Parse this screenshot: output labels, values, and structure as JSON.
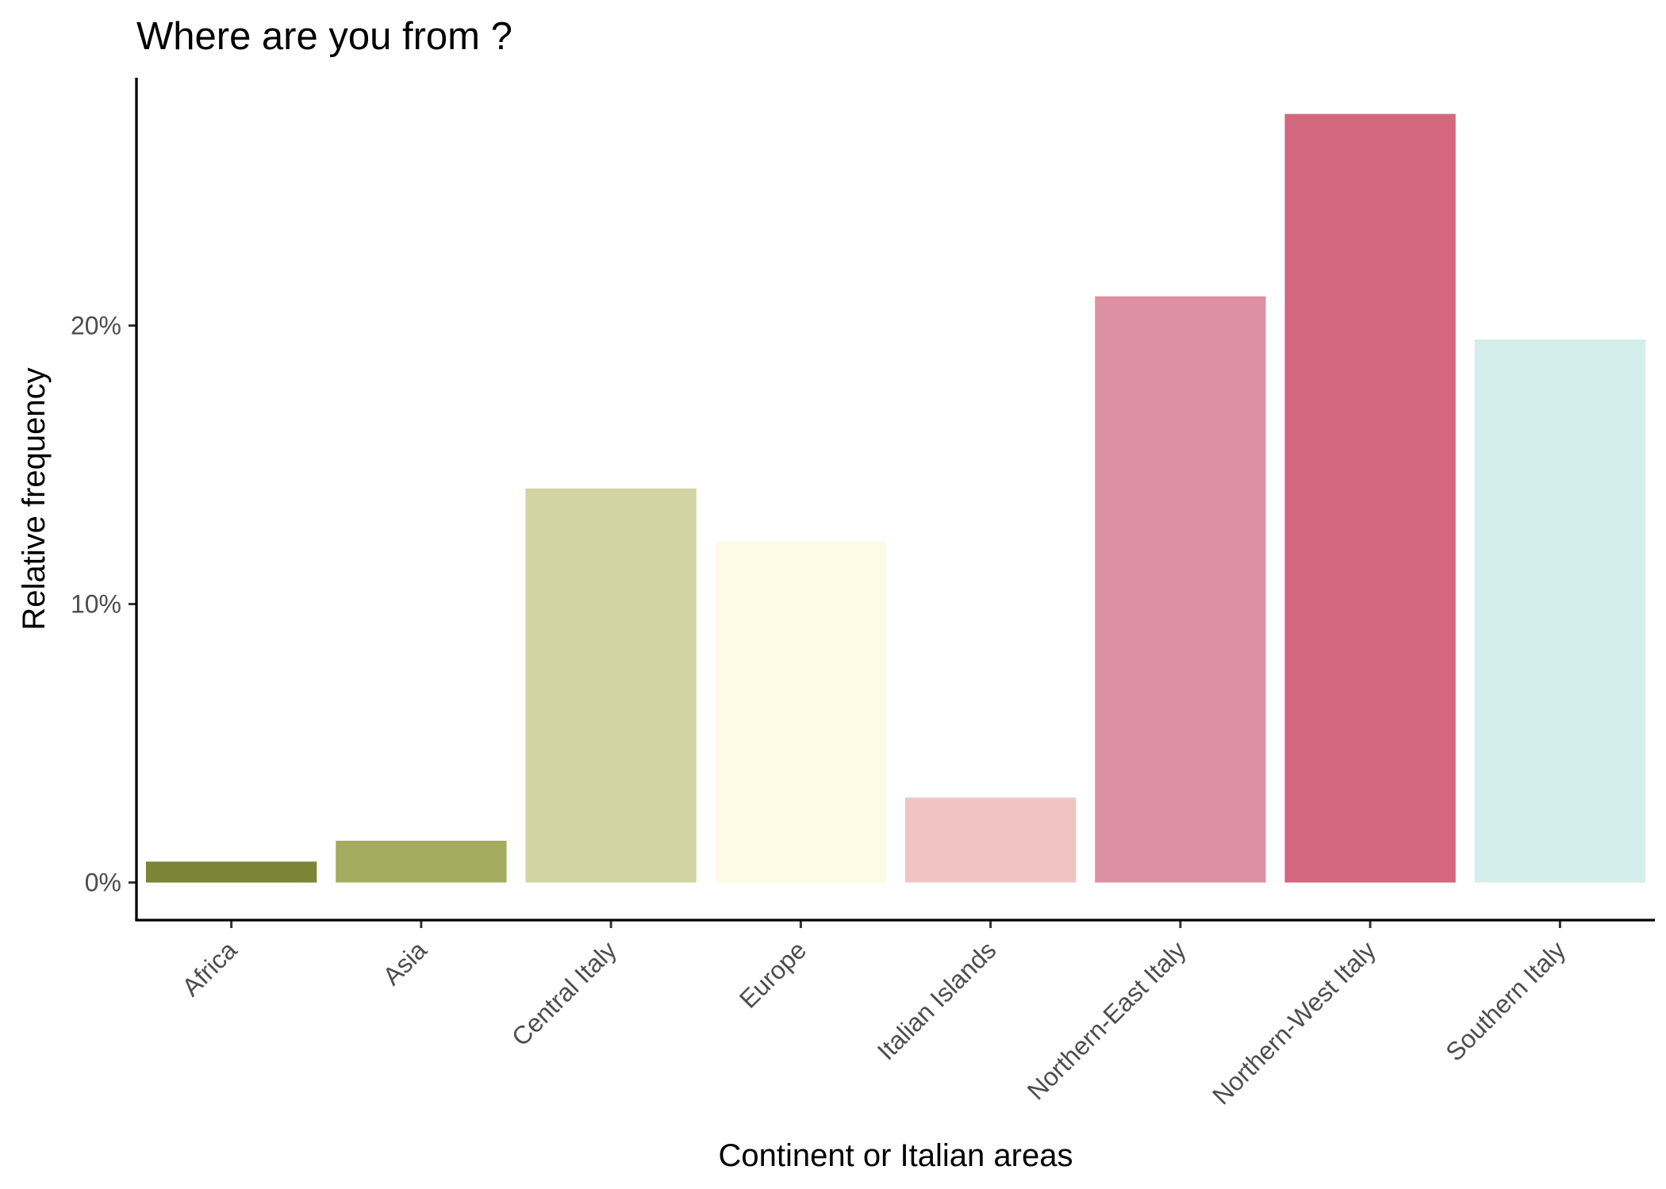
{
  "chart_data": {
    "type": "bar",
    "title": "Where are you from ?",
    "xlabel": "Continent or Italian areas",
    "ylabel": "Relative frequency",
    "categories": [
      "Africa",
      "Asia",
      "Central Italy",
      "Europe",
      "Italian Islands",
      "Northern-East Italy",
      "Northern-West Italy",
      "Southern Italy"
    ],
    "values": [
      0.75,
      1.5,
      14.15,
      12.25,
      3.05,
      21.05,
      27.6,
      19.5
    ],
    "colors": [
      "#7a8535",
      "#a3ac5f",
      "#d2d5a3",
      "#fdfbe4",
      "#efc4c2",
      "#df8fa2",
      "#d3677e",
      "#d3eeeb"
    ],
    "y_ticks": [
      0,
      10,
      20
    ],
    "y_tick_labels": [
      "0%",
      "10%",
      "20%"
    ],
    "ylim": [
      -1.35,
      28.9
    ],
    "grid": false,
    "legend": "none"
  }
}
